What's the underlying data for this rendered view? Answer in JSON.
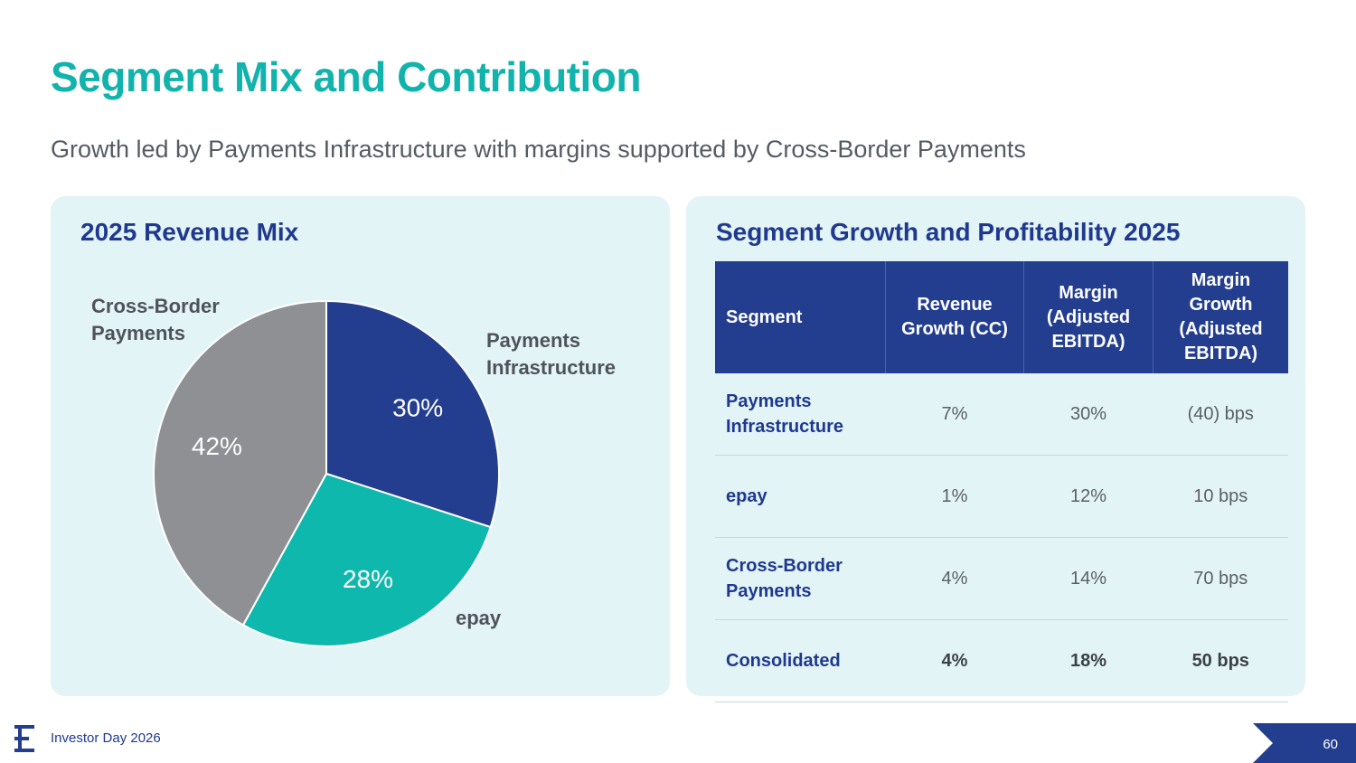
{
  "header": {
    "title": "Segment Mix and Contribution",
    "subtitle": "Growth led by Payments Infrastructure with margins supported by Cross-Border Payments"
  },
  "chart_data": {
    "type": "pie",
    "title": "2025 Revenue Mix",
    "slices": [
      {
        "label": "Payments Infrastructure",
        "value": 30,
        "display": "30%",
        "color": "#233d8f"
      },
      {
        "label": "epay",
        "value": 28,
        "display": "28%",
        "color": "#0fb8ad"
      },
      {
        "label": "Cross-Border Payments",
        "value": 42,
        "display": "42%",
        "color": "#8e9094"
      }
    ]
  },
  "table": {
    "title": "Segment Growth and Profitability 2025",
    "headers": [
      "Segment",
      "Revenue Growth (CC)",
      "Margin (Adjusted EBITDA)",
      "Margin Growth (Adjusted EBITDA)"
    ],
    "rows": [
      {
        "segment": "Payments Infrastructure",
        "revenue_growth": "7%",
        "margin": "30%",
        "margin_growth": "(40) bps"
      },
      {
        "segment": "epay",
        "revenue_growth": "1%",
        "margin": "12%",
        "margin_growth": "10 bps"
      },
      {
        "segment": "Cross-Border Payments",
        "revenue_growth": "4%",
        "margin": "14%",
        "margin_growth": "70 bps"
      },
      {
        "segment": "Consolidated",
        "revenue_growth": "4%",
        "margin": "18%",
        "margin_growth": "50 bps"
      }
    ]
  },
  "footer": {
    "logo_icon": "euronet-e-icon",
    "text": "Investor Day 2026",
    "page_number": "60",
    "accent": "#233d8f"
  }
}
